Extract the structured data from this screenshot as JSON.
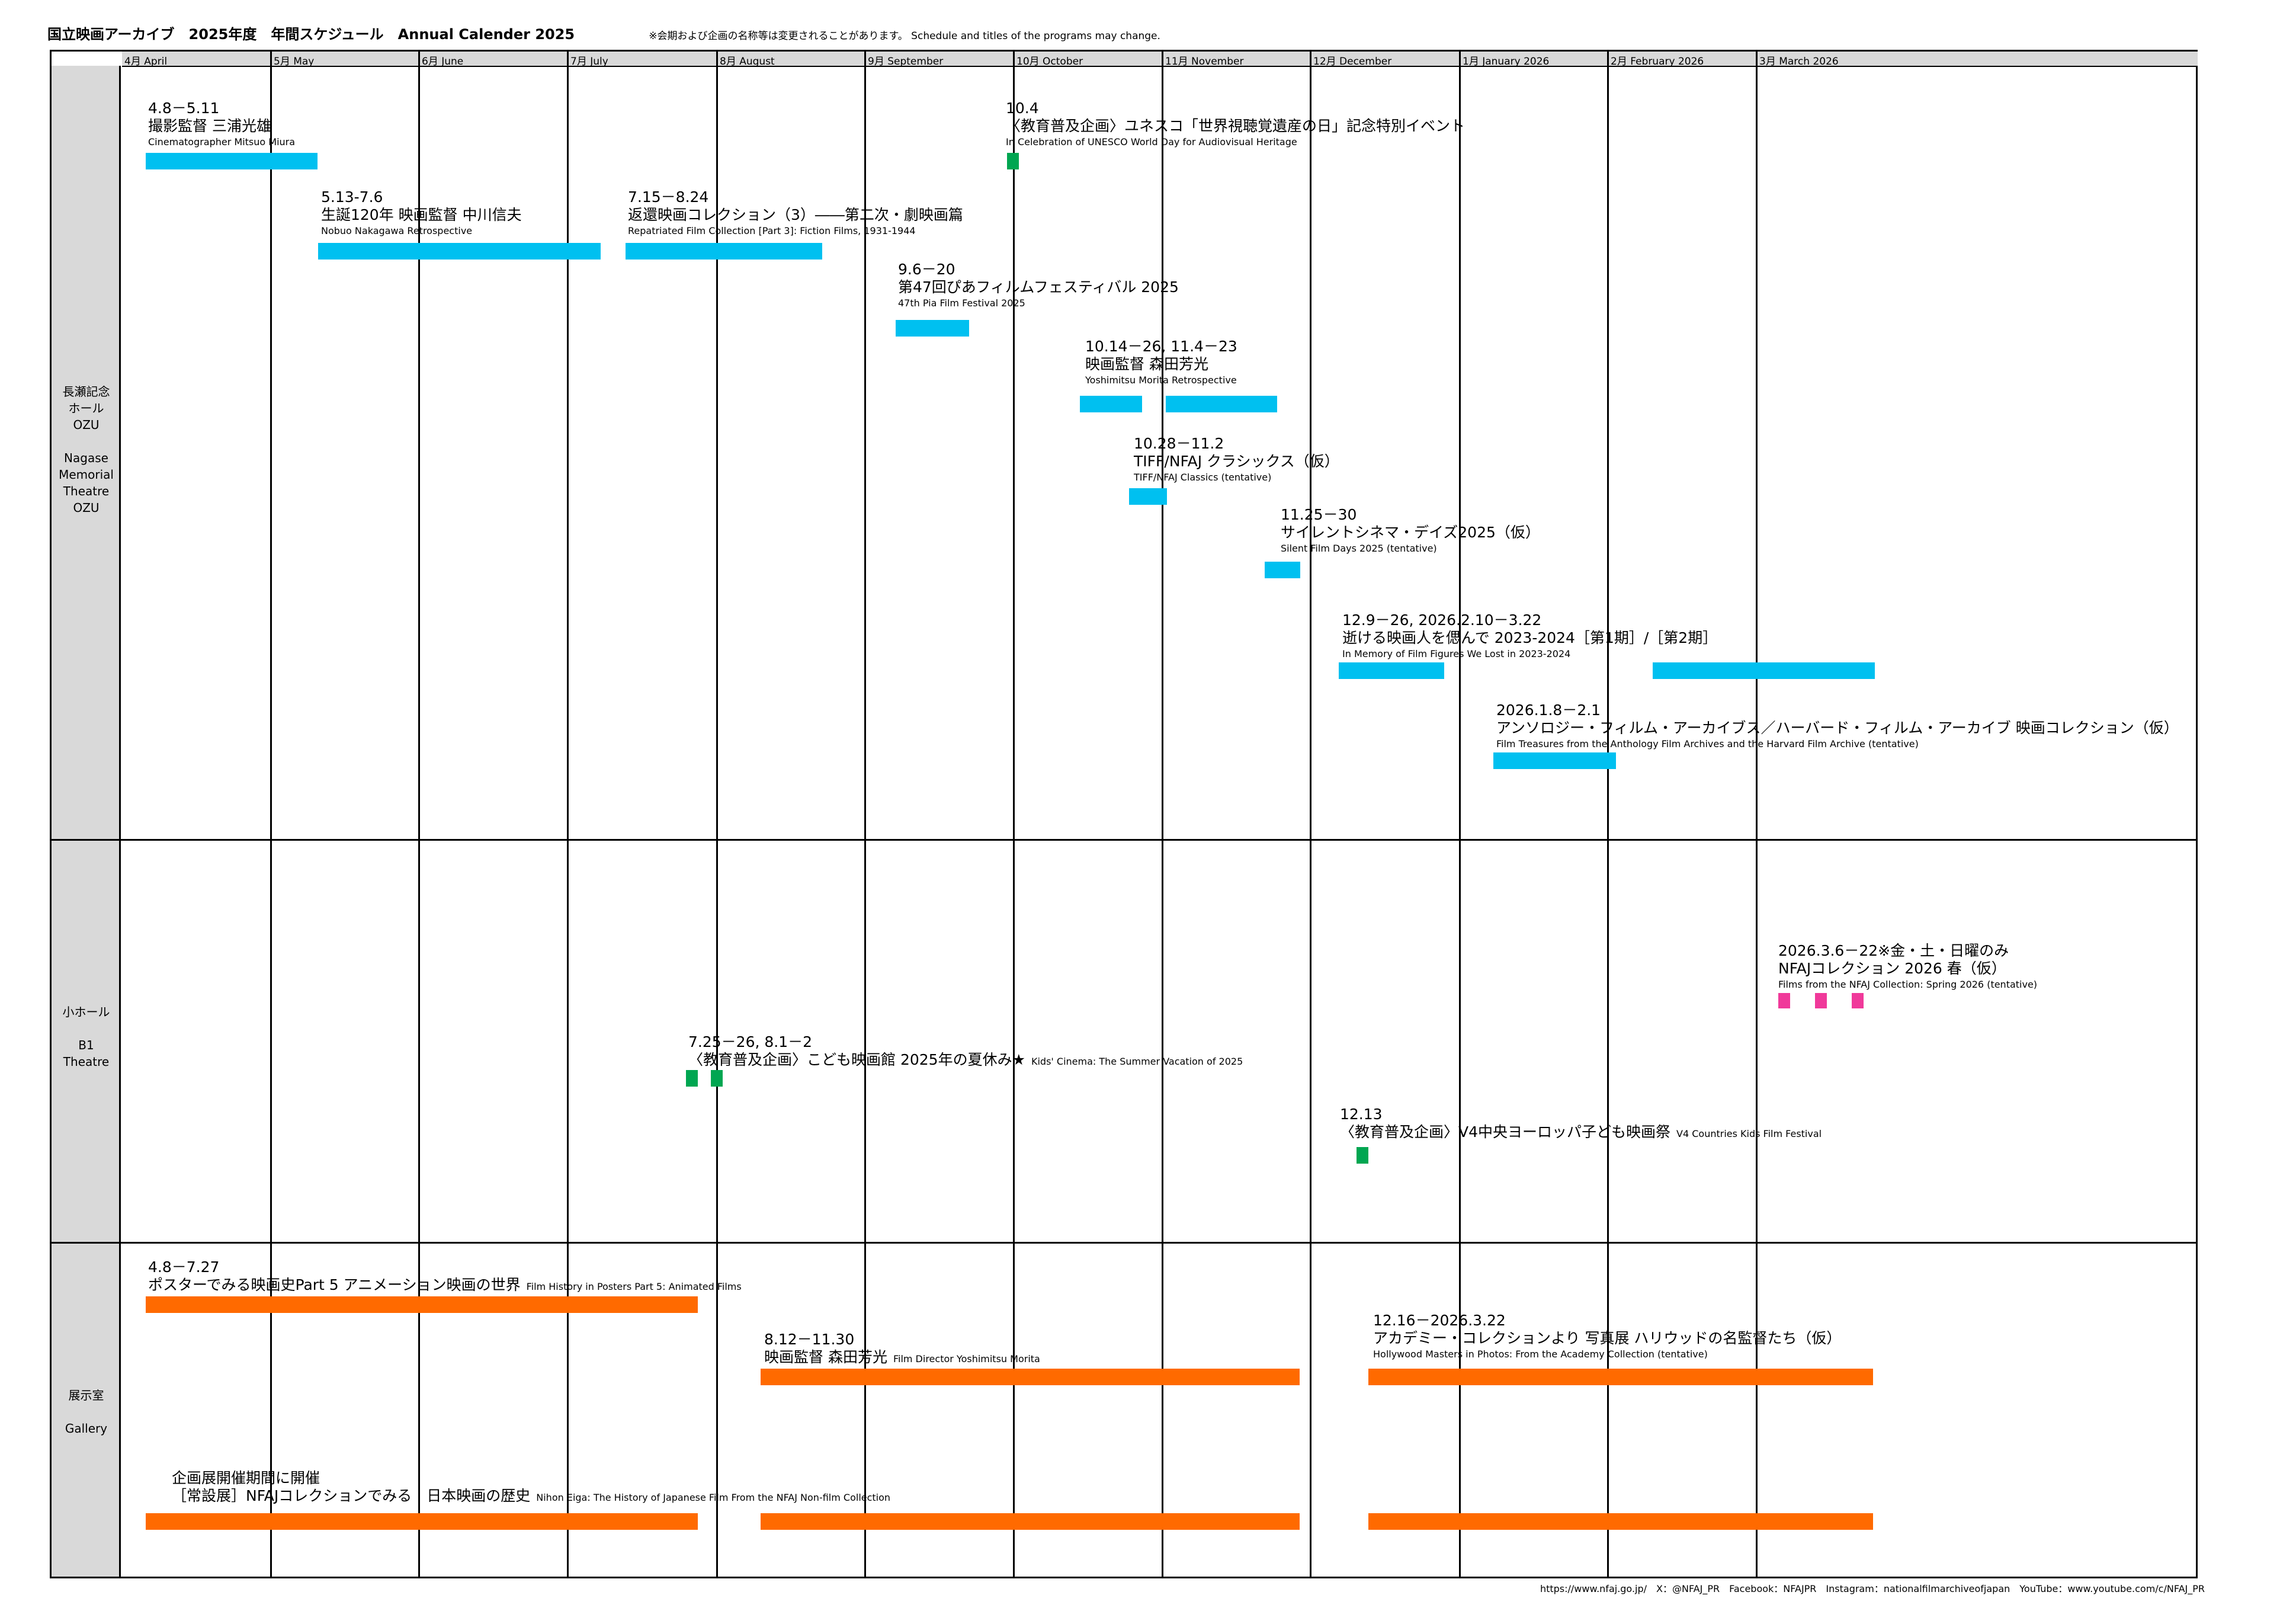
{
  "header": {
    "title": "国立映画アーカイブ　2025年度　年間スケジュール　Annual Calender 2025",
    "note": "※会期および企画の名称等は変更されることがあります。 Schedule and titles of the programs may change."
  },
  "months": [
    "4月 April",
    "5月 May",
    "6月 June",
    "7月 July",
    "8月 August",
    "9月 September",
    "10月 October",
    "11月 November",
    "12月 December",
    "1月 January 2026",
    "2月 February 2026",
    "3月 March 2026"
  ],
  "sections": {
    "ozu": "長瀬記念\nホール\nOZU\n\nNagase\nMemorial\nTheatre\nOZU",
    "b1": "小ホール\n\nB1\nTheatre",
    "gallery": "展示室\n\nGallery"
  },
  "events": {
    "miura": {
      "date": "4.8－5.11",
      "jp": "撮影監督 三浦光雄",
      "en": "Cinematographer Mitsuo Miura"
    },
    "unesco": {
      "date": "10.4",
      "jp": "〈教育普及企画〉ユネスコ「世界視聴覚遺産の日」記念特別イベント",
      "en": "In Celebration of UNESCO World Day for Audiovisual Heritage"
    },
    "nakagawa": {
      "date": "5.13-7.6",
      "jp": "生誕120年 映画監督 中川信夫",
      "en": "Nobuo Nakagawa Retrospective"
    },
    "repatriated": {
      "date": "7.15－8.24",
      "jp": "返還映画コレクション（3）――第二次・劇映画篇",
      "en": "Repatriated Film Collection [Part 3]: Fiction Films, 1931-1944"
    },
    "pia": {
      "date": "9.6－20",
      "jp": "第47回ぴあフィルムフェスティバル 2025",
      "en": "47th Pia Film Festival 2025"
    },
    "morita": {
      "date": "10.14－26, 11.4－23",
      "jp": "映画監督 森田芳光",
      "en": "Yoshimitsu Morita Retrospective"
    },
    "tiff": {
      "date": "10.28－11.2",
      "jp": "TIFF/NFAJ クラシックス（仮）",
      "en": "TIFF/NFAJ Classics (tentative)"
    },
    "silent": {
      "date": "11.25－30",
      "jp": "サイレントシネマ・デイズ2025（仮）",
      "en": "Silent Film Days 2025 (tentative)"
    },
    "memory": {
      "date": "12.9－26, 2026.2.10－3.22",
      "jp": "逝ける映画人を偲んで 2023-2024［第1期］/［第2期］",
      "en": "In Memory of Film Figures We Lost in 2023-2024"
    },
    "anthology": {
      "date": "2026.1.8－2.1",
      "jp": "アンソロジー・フィルム・アーカイブス／ハーバード・フィルム・アーカイブ 映画コレクション（仮）",
      "en": "Film Treasures from the Anthology Film Archives and the Harvard Film Archive (tentative)"
    },
    "spring": {
      "date": "2026.3.6－22※金・土・日曜のみ",
      "jp": "NFAJコレクション 2026 春（仮）",
      "en": "Films from the NFAJ Collection: Spring 2026 (tentative)"
    },
    "kids": {
      "date": "7.25－26, 8.1－2",
      "jp": "〈教育普及企画〉こども映画館 2025年の夏休み★",
      "en": "Kids' Cinema: The Summer Vacation of 2025"
    },
    "v4": {
      "date": "12.13",
      "jp": "〈教育普及企画〉V4中央ヨーロッパ子ども映画祭",
      "en": "V4 Countries Kids Film Festival"
    },
    "posters": {
      "date": "4.8－7.27",
      "jp": "ポスターでみる映画史Part 5 アニメーション映画の世界",
      "en": "Film History in Posters Part 5: Animated Films"
    },
    "morita_exh": {
      "date": "8.12－11.30",
      "jp": "映画監督 森田芳光",
      "en": "Film Director Yoshimitsu Morita"
    },
    "hollywood": {
      "date": "12.16－2026.3.22",
      "jp": "アカデミー・コレクションより 写真展 ハリウッドの名監督たち（仮）",
      "en": "Hollywood Masters in Photos: From the Academy Collection (tentative)"
    },
    "permanent": {
      "date": "企画展開催期間に開催",
      "jp": "［常設展］NFAJコレクションでみる　日本映画の歴史",
      "en": "Nihon Eiga: The History of Japanese Film From the NFAJ Non-film Collection"
    }
  },
  "footer": "https://www.nfaj.go.jp/　X：@NFAJ_PR　Facebook：NFAJPR　Instagram：nationalfilmarchiveofjapan　YouTube：www.youtube.com/c/NFAJ_PR",
  "colors": {
    "theatre_bar": "#00c0f0",
    "special_bar": "#00a651",
    "spring_bar": "#f0399a",
    "gallery_bar": "#ff6a00",
    "sidebar_bg": "#d9d9d9"
  }
}
